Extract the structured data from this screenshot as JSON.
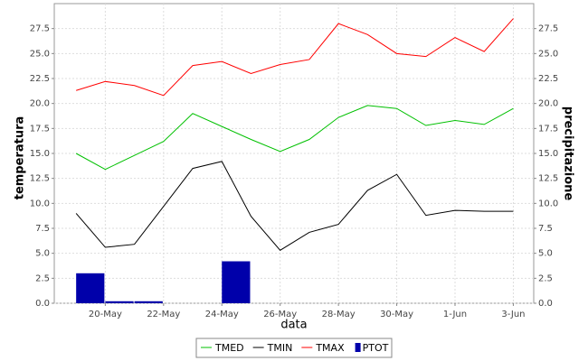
{
  "chart_data": {
    "type": "line",
    "x_label": "data",
    "y_label": "temperatura",
    "y2_label": "precipitazione",
    "categories": [
      null,
      "20-May",
      null,
      "22-May",
      null,
      "24-May",
      null,
      "26-May",
      null,
      "28-May",
      null,
      "30-May",
      null,
      "1-Jun",
      null,
      "3-Jun"
    ],
    "series": [
      {
        "name": "TMED",
        "color": "#00c000",
        "values": [
          15.0,
          13.4,
          14.8,
          16.2,
          19.0,
          17.7,
          16.4,
          15.2,
          16.4,
          18.6,
          19.8,
          19.5,
          17.8,
          18.3,
          17.9,
          19.5
        ]
      },
      {
        "name": "TMIN",
        "color": "#000000",
        "values": [
          9.0,
          5.6,
          5.9,
          9.7,
          13.5,
          14.2,
          8.7,
          5.3,
          7.1,
          7.9,
          11.3,
          12.9,
          8.8,
          9.3,
          9.2,
          9.2
        ]
      },
      {
        "name": "TMAX",
        "color": "#ff0000",
        "values": [
          21.3,
          22.2,
          21.8,
          20.8,
          23.8,
          24.2,
          23.0,
          23.9,
          24.4,
          28.0,
          26.9,
          25.0,
          24.7,
          26.6,
          25.2,
          28.5
        ]
      },
      {
        "name": "PTOT",
        "color": "#0000aa",
        "type": "bar",
        "axis": "y2",
        "values": [
          3.0,
          0.2,
          0.2,
          0,
          0,
          4.2,
          0,
          0,
          0,
          0,
          0,
          0,
          0,
          0,
          0,
          0
        ]
      }
    ],
    "ylim": [
      0,
      30
    ],
    "yticks": [
      {
        "value": 0,
        "label": "0.0"
      },
      2.5,
      {
        "value": 5,
        "label": "5.0"
      },
      7.5,
      {
        "value": 10,
        "label": "10.0"
      },
      12.5,
      {
        "value": 15,
        "label": "15.0"
      },
      17.5,
      {
        "value": 20,
        "label": "20.0"
      },
      22.5,
      {
        "value": 25,
        "label": "25.0"
      },
      27.5
    ],
    "y2lim": [
      0,
      30
    ],
    "y2ticks": [
      {
        "value": 0,
        "label": "0.0"
      },
      2.5,
      {
        "value": 5,
        "label": "5.0"
      },
      7.5,
      {
        "value": 10,
        "label": "10.0"
      },
      12.5,
      {
        "value": 15,
        "label": "15.0"
      },
      17.5,
      {
        "value": 20,
        "label": "20.0"
      },
      22.5,
      {
        "value": 25,
        "label": "25.0"
      },
      27.5
    ],
    "grid": true
  }
}
